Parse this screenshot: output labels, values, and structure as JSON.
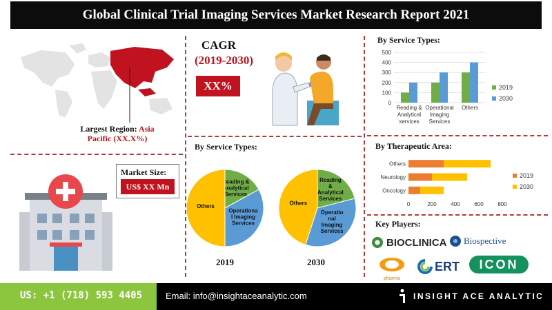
{
  "title": "Global Clinical Trial Imaging Services Market Research Report 2021",
  "region": {
    "label": "Largest Region:",
    "value_line1": "Asia",
    "value_line2": "Pacific (XX.X%)"
  },
  "cagr": {
    "label": "CAGR",
    "period": "(2019-2030)",
    "value": "XX%"
  },
  "market_size": {
    "label": "Market Size:",
    "value": "US$ XX Mn"
  },
  "pies": {
    "section_title": "By Service Types:"
  },
  "bar_section_title": "By Service Types:",
  "therapeutic_section_title": "By Therapeutic Area:",
  "key_players": {
    "title": "Key Players:",
    "names": [
      "BIOCLINICA",
      "Biospective",
      "pharma",
      "ERT",
      "ICON"
    ]
  },
  "footer": {
    "phone": "US: +1 (718) 593 4405",
    "email": "Email: info@insightaceanalytic.com",
    "brand": "INSIGHT ACE ANALYTIC"
  },
  "colors": {
    "accent_red": "#c1121f",
    "green": "#8cc63f",
    "blue": "#5b9bd5",
    "yellow": "#ffc000",
    "orange": "#ed7d31"
  },
  "chart_data": [
    {
      "type": "pie",
      "title": "",
      "caption": "2019",
      "slices": [
        {
          "name": "Reading & Analytical Services",
          "value": 17,
          "color": "#70ad47"
        },
        {
          "name": "Operational Imaging Services",
          "value": 33,
          "color": "#5b9bd5"
        },
        {
          "name": "Others",
          "value": 50,
          "color": "#ffc000"
        }
      ]
    },
    {
      "type": "pie",
      "title": "",
      "caption": "2030",
      "slices": [
        {
          "name": "Reading & Analytical Services",
          "value": 21,
          "color": "#70ad47"
        },
        {
          "name": "Operational Imaging Services",
          "value": 34,
          "color": "#5b9bd5"
        },
        {
          "name": "Others",
          "value": 45,
          "color": "#ffc000"
        }
      ]
    },
    {
      "type": "bar",
      "title": "",
      "categories": [
        "Reading & Analytical services",
        "Operational Imaging Services",
        "Others"
      ],
      "category_lines": [
        [
          "Reading &",
          "Analytical",
          "services"
        ],
        [
          "Operational",
          "Imaging",
          "Services"
        ],
        [
          "Others"
        ]
      ],
      "series": [
        {
          "name": "2019",
          "values": [
            100,
            200,
            300
          ],
          "color": "#70ad47"
        },
        {
          "name": "2030",
          "values": [
            200,
            300,
            400
          ],
          "color": "#5b9bd5"
        }
      ],
      "ylim": [
        0,
        500
      ],
      "yticks": [
        0,
        100,
        200,
        300,
        400,
        500
      ],
      "grid": true,
      "legend": "right"
    },
    {
      "type": "bar",
      "orientation": "horizontal",
      "stacked": true,
      "title": "",
      "categories": [
        "Oncology",
        "Neurology",
        "Others"
      ],
      "series": [
        {
          "name": "2019",
          "values": [
            100,
            200,
            300
          ],
          "color": "#ed7d31"
        },
        {
          "name": "2030",
          "values": [
            200,
            300,
            400
          ],
          "color": "#ffc000"
        }
      ],
      "xlim": [
        0,
        800
      ],
      "xticks": [
        0,
        200,
        400,
        600,
        800
      ],
      "legend": "right"
    }
  ]
}
